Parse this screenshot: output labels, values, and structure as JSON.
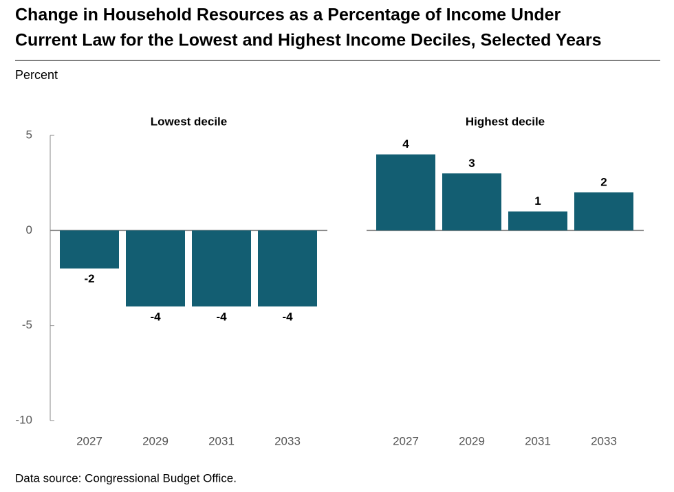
{
  "title": [
    "Change in Household Resources as a Percentage of Income Under",
    "Current Law for the Lowest and Highest Income Deciles, Selected Years"
  ],
  "y_label": "Percent",
  "source": "Data source: Congressional Budget Office.",
  "chart_data": [
    {
      "type": "bar",
      "title": "Lowest decile",
      "categories": [
        "2027",
        "2029",
        "2031",
        "2033"
      ],
      "values": [
        -2,
        -4,
        -4,
        -4
      ],
      "color": "#135e72",
      "ylim": [
        -10,
        5
      ],
      "yticks": [
        -10,
        -5,
        0,
        5
      ],
      "grid": false
    },
    {
      "type": "bar",
      "title": "Highest decile",
      "categories": [
        "2027",
        "2029",
        "2031",
        "2033"
      ],
      "values": [
        4,
        3,
        1,
        2
      ],
      "color": "#135e72",
      "ylim": [
        -10,
        5
      ],
      "grid": false
    }
  ]
}
